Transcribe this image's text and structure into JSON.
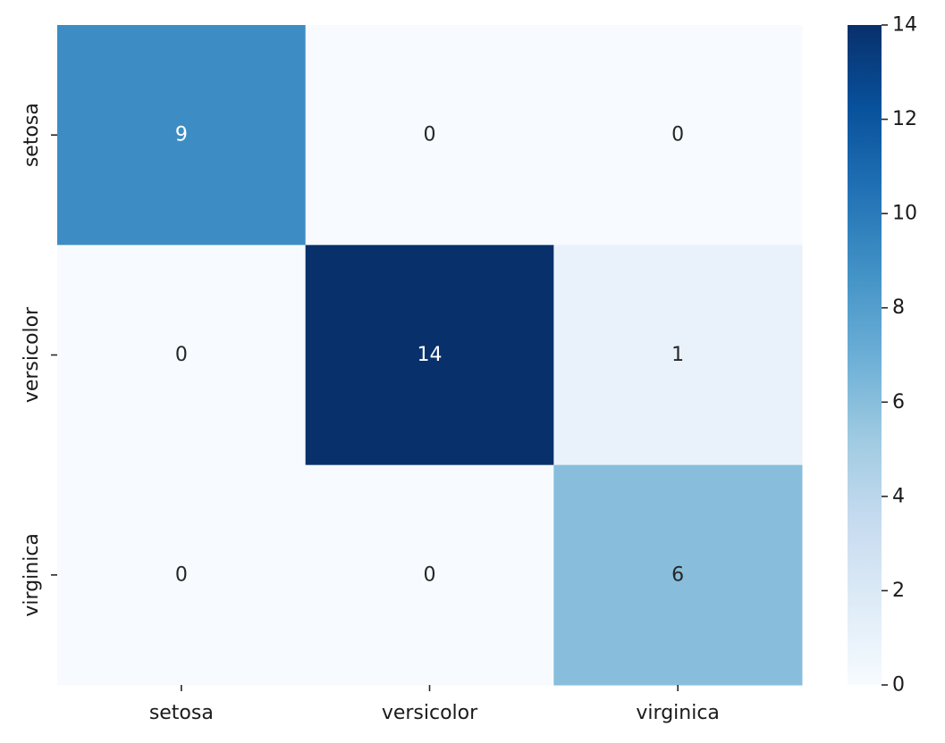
{
  "chart_data": {
    "type": "heatmap",
    "title": "",
    "xlabel": "",
    "ylabel": "",
    "x_categories": [
      "setosa",
      "versicolor",
      "virginica"
    ],
    "y_categories": [
      "setosa",
      "versicolor",
      "virginica"
    ],
    "values": [
      [
        9,
        0,
        0
      ],
      [
        0,
        14,
        1
      ],
      [
        0,
        0,
        6
      ]
    ],
    "colormap": "Blues",
    "annotations": true,
    "colorbar": {
      "range": [
        0,
        14
      ],
      "ticks": [
        0,
        2,
        4,
        6,
        8,
        10,
        12,
        14
      ]
    },
    "colors": {
      "low": "#f7fbff",
      "high": "#08306b",
      "text_dark": "#262626",
      "text_light": "#ffffff"
    }
  }
}
